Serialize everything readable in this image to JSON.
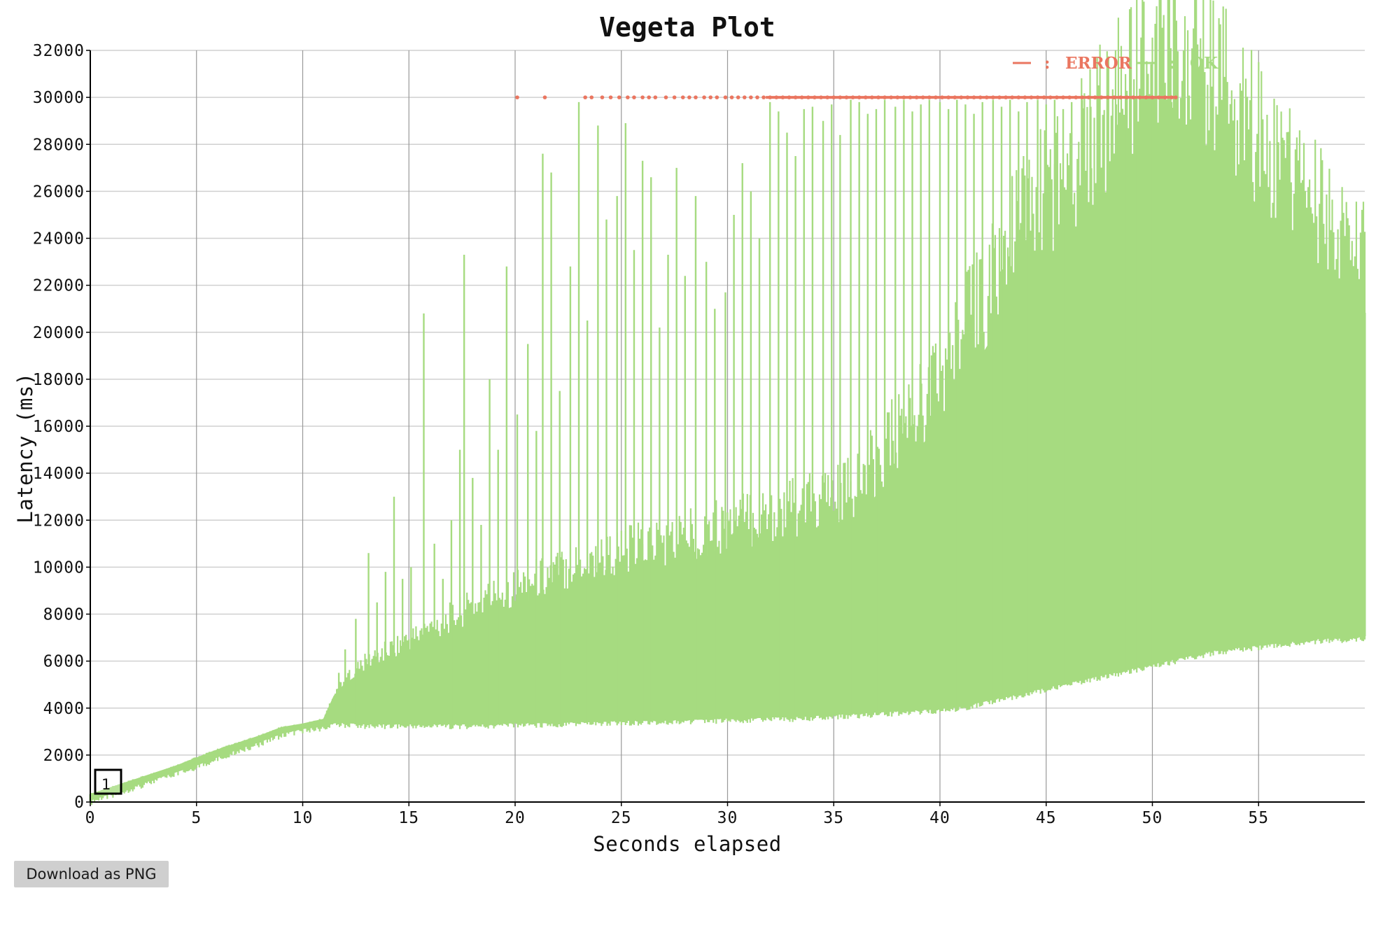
{
  "download_button_label": "Download as PNG",
  "colors": {
    "ok": "#a6db80",
    "error": "#ea7660",
    "grid_horizontal": "#d0d0d0",
    "grid_vertical": "#999999",
    "axis": "#000000"
  },
  "chart_data": {
    "type": "scatter",
    "title": "Vegeta Plot",
    "xlabel": "Seconds elapsed",
    "ylabel": "Latency (ms)",
    "xlim": [
      0,
      60
    ],
    "ylim": [
      0,
      32000
    ],
    "x_ticks": [
      0,
      5,
      10,
      15,
      20,
      25,
      30,
      35,
      40,
      45,
      50,
      55
    ],
    "y_ticks": [
      0,
      2000,
      4000,
      6000,
      8000,
      10000,
      12000,
      14000,
      16000,
      18000,
      20000,
      22000,
      24000,
      26000,
      28000,
      30000,
      32000
    ],
    "grid": true,
    "legend_position": "top-right",
    "series": [
      {
        "name": "ERROR",
        "color": "#ea7660",
        "render": "points",
        "x": [
          20.1,
          21.4,
          23.3,
          23.6,
          24.1,
          24.5,
          24.9,
          25.3,
          25.6,
          26.0,
          26.3,
          26.6,
          27.1,
          27.5,
          27.9,
          28.2,
          28.5,
          28.9,
          29.2,
          29.5,
          29.9,
          30.2,
          30.5,
          30.8,
          31.1,
          31.4,
          31.7,
          32.0,
          32.3,
          32.6,
          32.9,
          33.2,
          33.5,
          33.8,
          34.1,
          34.4,
          34.7,
          35.0,
          35.3,
          35.6,
          35.9,
          36.2,
          36.5,
          36.8,
          37.1,
          37.4,
          37.7,
          38.0,
          38.3,
          38.6,
          38.9,
          39.2,
          39.5,
          39.8,
          40.1,
          40.4,
          40.7,
          41.0,
          41.3,
          41.6,
          41.9,
          42.2,
          42.5,
          42.8,
          43.1,
          43.4,
          43.7,
          44.0,
          44.3,
          44.6,
          44.9,
          45.2,
          45.5,
          45.8,
          46.1,
          46.4,
          46.7,
          47.0,
          47.3,
          47.6,
          47.9,
          48.2,
          48.5,
          48.8,
          49.1,
          49.4,
          49.7,
          50.0,
          50.3,
          50.6,
          50.9,
          51.1
        ],
        "y": [
          30000,
          30000,
          30000,
          30000,
          30000,
          30000,
          30000,
          30000,
          30000,
          30000,
          30000,
          30000,
          30000,
          30000,
          30000,
          30000,
          30000,
          30000,
          30000,
          30000,
          30000,
          30000,
          30000,
          30000,
          30000,
          30000,
          30000,
          30000,
          30000,
          30000,
          30000,
          30000,
          30000,
          30000,
          30000,
          30000,
          30000,
          30000,
          30000,
          30000,
          30000,
          30000,
          30000,
          30000,
          30000,
          30000,
          30000,
          30000,
          30000,
          30000,
          30000,
          30000,
          30000,
          30000,
          30000,
          30000,
          30000,
          30000,
          30000,
          30000,
          30000,
          30000,
          30000,
          30000,
          30000,
          30000,
          30000,
          30000,
          30000,
          30000,
          30000,
          30000,
          30000,
          30000,
          30000,
          30000,
          30000,
          30000,
          30000,
          30000,
          30000,
          30000,
          30000,
          30000,
          30000,
          30000,
          30000,
          30000,
          30000,
          30000,
          30000,
          30000
        ]
      },
      {
        "name": "OK",
        "color": "#a6db80",
        "render": "band",
        "x": [
          0,
          1,
          2,
          3,
          4,
          5,
          6,
          7,
          8,
          9,
          10,
          11,
          11.5,
          12,
          13,
          14,
          15,
          16,
          17,
          18,
          19,
          20,
          21,
          22,
          23,
          24,
          25,
          26,
          27,
          28,
          29,
          30,
          31,
          32,
          33,
          34,
          35,
          36,
          37,
          38,
          39,
          40,
          41,
          42,
          43,
          44,
          45,
          46,
          47,
          48,
          49,
          50,
          51,
          52,
          53,
          54,
          55,
          56,
          57,
          58,
          59,
          60
        ],
        "y_low": [
          100,
          400,
          700,
          1000,
          1300,
          1600,
          1950,
          2300,
          2600,
          2950,
          3150,
          3250,
          3400,
          3400,
          3350,
          3350,
          3350,
          3350,
          3350,
          3350,
          3350,
          3400,
          3400,
          3400,
          3450,
          3450,
          3500,
          3500,
          3500,
          3550,
          3550,
          3600,
          3600,
          3650,
          3650,
          3700,
          3750,
          3800,
          3850,
          3900,
          3950,
          4000,
          4100,
          4300,
          4500,
          4700,
          4900,
          5100,
          5300,
          5500,
          5700,
          5900,
          6100,
          6300,
          6500,
          6600,
          6700,
          6800,
          6900,
          7000,
          7000,
          7100
        ],
        "y_dense": [
          300,
          600,
          900,
          1200,
          1500,
          1850,
          2200,
          2500,
          2800,
          3150,
          3300,
          3500,
          4500,
          5000,
          5600,
          6000,
          6400,
          6800,
          7200,
          7600,
          8000,
          8300,
          8600,
          8900,
          9200,
          9400,
          9600,
          9800,
          10000,
          10200,
          10400,
          10600,
          10800,
          11000,
          11200,
          11400,
          11600,
          12000,
          13000,
          14000,
          15000,
          16000,
          17500,
          19000,
          20500,
          22000,
          23000,
          24000,
          25000,
          26000,
          27000,
          28000,
          29000,
          28200,
          27200,
          26300,
          25300,
          24300,
          23400,
          22400,
          21500,
          20800
        ],
        "spikes": [
          [
            11.7,
            5500
          ],
          [
            12.0,
            6500
          ],
          [
            12.5,
            7800
          ],
          [
            13.1,
            10600
          ],
          [
            13.5,
            8500
          ],
          [
            13.9,
            9800
          ],
          [
            14.3,
            13000
          ],
          [
            14.7,
            9500
          ],
          [
            15.1,
            10000
          ],
          [
            15.7,
            20800
          ],
          [
            16.2,
            11000
          ],
          [
            16.6,
            9500
          ],
          [
            17.0,
            12000
          ],
          [
            17.4,
            15000
          ],
          [
            17.6,
            23300
          ],
          [
            18.0,
            13800
          ],
          [
            18.4,
            11800
          ],
          [
            18.8,
            18000
          ],
          [
            19.2,
            15000
          ],
          [
            19.6,
            22800
          ],
          [
            20.1,
            16500
          ],
          [
            20.6,
            19500
          ],
          [
            21.0,
            15800
          ],
          [
            21.3,
            27600
          ],
          [
            21.7,
            26800
          ],
          [
            22.1,
            17500
          ],
          [
            22.6,
            22800
          ],
          [
            23.0,
            29800
          ],
          [
            23.4,
            20500
          ],
          [
            23.9,
            28800
          ],
          [
            24.3,
            24800
          ],
          [
            24.8,
            25800
          ],
          [
            25.2,
            28900
          ],
          [
            25.6,
            23500
          ],
          [
            26.0,
            27300
          ],
          [
            26.4,
            26600
          ],
          [
            26.8,
            20200
          ],
          [
            27.2,
            23300
          ],
          [
            27.6,
            27000
          ],
          [
            28.0,
            22400
          ],
          [
            28.5,
            25800
          ],
          [
            29.0,
            23000
          ],
          [
            29.4,
            21000
          ],
          [
            29.9,
            21700
          ],
          [
            30.3,
            25000
          ],
          [
            30.7,
            27200
          ],
          [
            31.1,
            26000
          ],
          [
            31.5,
            24000
          ],
          [
            32.0,
            29800
          ],
          [
            32.4,
            29400
          ],
          [
            32.8,
            28500
          ],
          [
            33.2,
            27500
          ],
          [
            33.6,
            29500
          ],
          [
            34.0,
            29600
          ],
          [
            34.5,
            29000
          ],
          [
            34.9,
            29700
          ],
          [
            35.3,
            28400
          ],
          [
            35.8,
            29900
          ],
          [
            36.2,
            29800
          ],
          [
            36.6,
            29300
          ],
          [
            37.0,
            29500
          ],
          [
            37.4,
            29900
          ],
          [
            37.9,
            29600
          ],
          [
            38.3,
            29900
          ],
          [
            38.7,
            29400
          ],
          [
            39.1,
            29700
          ],
          [
            39.5,
            29900
          ],
          [
            40.0,
            29800
          ],
          [
            40.4,
            29500
          ],
          [
            40.8,
            29900
          ],
          [
            41.2,
            29700
          ],
          [
            41.6,
            29300
          ],
          [
            42.0,
            29800
          ],
          [
            42.5,
            29900
          ],
          [
            42.9,
            29600
          ],
          [
            43.3,
            29900
          ],
          [
            43.7,
            29400
          ],
          [
            44.1,
            29800
          ],
          [
            44.6,
            29900
          ],
          [
            45.0,
            29700
          ],
          [
            45.4,
            29900
          ],
          [
            45.8,
            29500
          ],
          [
            46.2,
            29800
          ],
          [
            46.7,
            29900
          ],
          [
            47.1,
            29600
          ],
          [
            47.5,
            29800
          ],
          [
            47.9,
            29300
          ],
          [
            48.3,
            29700
          ],
          [
            48.8,
            29900
          ],
          [
            49.2,
            29500
          ],
          [
            49.6,
            29800
          ],
          [
            50.0,
            29900
          ],
          [
            50.4,
            29600
          ],
          [
            50.9,
            29800
          ]
        ]
      }
    ],
    "annotation": "1"
  }
}
